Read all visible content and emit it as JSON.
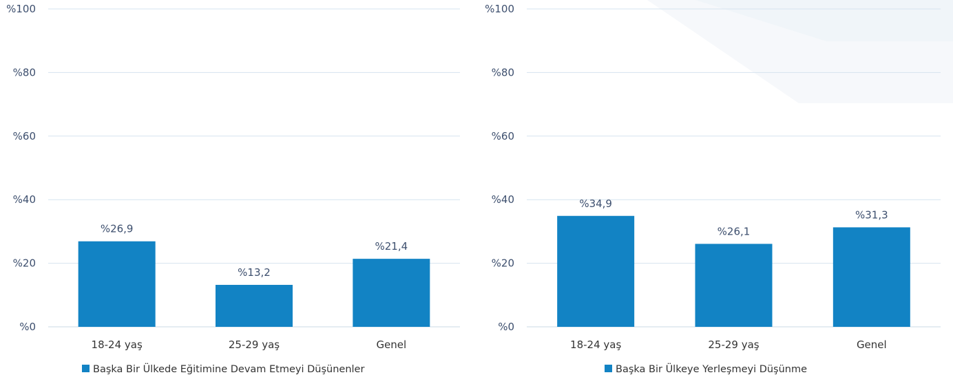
{
  "colors": {
    "bar": "#1283c4",
    "legend_swatch": "#1283c4",
    "background_watermark": "#eef3f8"
  },
  "chart_data": [
    {
      "type": "bar",
      "categories": [
        "18-24 yaş",
        "25-29 yaş",
        "Genel"
      ],
      "series": [
        {
          "name": "Başka Bir Ülkede Eğitimine Devam Etmeyi Düşünenler",
          "values": [
            26.9,
            13.2,
            21.4
          ]
        }
      ],
      "value_labels": [
        "%26,9",
        "%13,2",
        "%21,4"
      ],
      "yticks": [
        0,
        20,
        40,
        60,
        80,
        100
      ],
      "ytick_labels": [
        "%0",
        "%20",
        "%40",
        "%60",
        "%80",
        "%100"
      ],
      "ylim": [
        0,
        100
      ],
      "title": "",
      "xlabel": "",
      "ylabel": "",
      "grid": true,
      "legend_position": "bottom-left"
    },
    {
      "type": "bar",
      "categories": [
        "18-24 yaş",
        "25-29 yaş",
        "Genel"
      ],
      "series": [
        {
          "name": "Başka Bir Ülkeye Yerleşmeyi Düşünme",
          "values": [
            34.9,
            26.1,
            31.3
          ]
        }
      ],
      "value_labels": [
        "%34,9",
        "%26,1",
        "%31,3"
      ],
      "yticks": [
        0,
        20,
        40,
        60,
        80,
        100
      ],
      "ytick_labels": [
        "%0",
        "%20",
        "%40",
        "%60",
        "%80",
        "%100"
      ],
      "ylim": [
        0,
        100
      ],
      "title": "",
      "xlabel": "",
      "ylabel": "",
      "grid": true,
      "legend_position": "bottom-center"
    }
  ]
}
